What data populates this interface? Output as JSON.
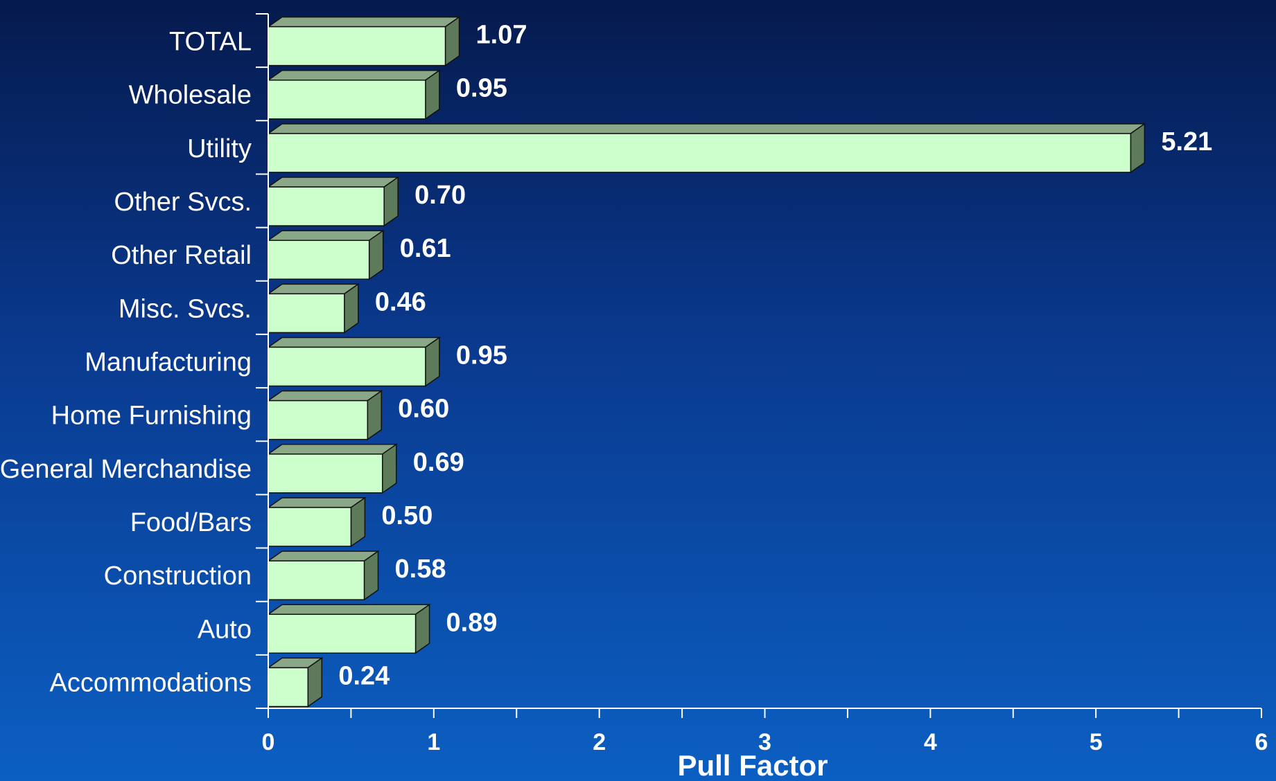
{
  "chart_data": {
    "type": "bar",
    "orientation": "horizontal",
    "categories": [
      "TOTAL",
      "Wholesale",
      "Utility",
      "Other Svcs.",
      "Other Retail",
      "Misc. Svcs.",
      "Manufacturing",
      "Home Furnishing",
      "General Merchandise",
      "Food/Bars",
      "Construction",
      "Auto",
      "Accommodations"
    ],
    "values": [
      1.07,
      0.95,
      5.21,
      0.7,
      0.61,
      0.46,
      0.95,
      0.6,
      0.69,
      0.5,
      0.58,
      0.89,
      0.24
    ],
    "value_labels": [
      "1.07",
      "0.95",
      "5.21",
      "0.70",
      "0.61",
      "0.46",
      "0.95",
      "0.60",
      "0.69",
      "0.50",
      "0.58",
      "0.89",
      "0.24"
    ],
    "xlabel": "Pull Factor",
    "xlim": [
      0,
      6
    ],
    "xticks": [
      "0",
      "1",
      "2",
      "3",
      "4",
      "5",
      "6"
    ],
    "grid": false,
    "legend": "none",
    "colors": {
      "bar_front": "#ccffcc",
      "bar_top": "#8aa887",
      "bar_side": "#5d7a5b",
      "bar_edge": "#111111",
      "axis": "#ffffff",
      "background_top": "#051a4e",
      "background_bottom": "#0b5fc2"
    }
  }
}
